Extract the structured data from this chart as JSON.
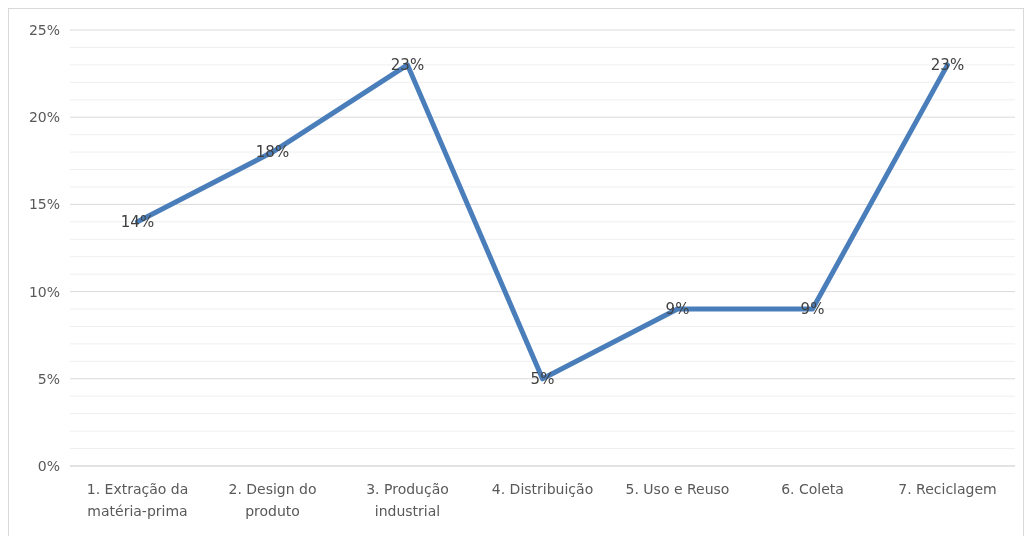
{
  "chart_data": {
    "type": "line",
    "categories": [
      "1. Extração da matéria-prima",
      "2. Design do produto",
      "3. Produção industrial",
      "4. Distribuição",
      "5. Uso e Reuso",
      "6. Coleta",
      "7. Reciclagem"
    ],
    "series": [
      {
        "color": "#4a7ebb",
        "values": [
          14,
          18,
          23,
          5,
          9,
          9,
          23
        ],
        "value_labels": [
          "14%",
          "18%",
          "23%",
          "5%",
          "9%",
          "9%",
          "23%"
        ]
      }
    ],
    "ylim": [
      0,
      25
    ],
    "yticks": [
      {
        "value": 0,
        "label": "0%"
      },
      {
        "value": 1,
        "label": null
      },
      {
        "value": 2,
        "label": null
      },
      {
        "value": 3,
        "label": null
      },
      {
        "value": 4,
        "label": null
      },
      {
        "value": 5,
        "label": "5%"
      },
      {
        "value": 6,
        "label": null
      },
      {
        "value": 7,
        "label": null
      },
      {
        "value": 8,
        "label": null
      },
      {
        "value": 9,
        "label": null
      },
      {
        "value": 10,
        "label": "10%"
      },
      {
        "value": 11,
        "label": null
      },
      {
        "value": 12,
        "label": null
      },
      {
        "value": 13,
        "label": null
      },
      {
        "value": 14,
        "label": null
      },
      {
        "value": 15,
        "label": "15%"
      },
      {
        "value": 16,
        "label": null
      },
      {
        "value": 17,
        "label": null
      },
      {
        "value": 18,
        "label": null
      },
      {
        "value": 19,
        "label": null
      },
      {
        "value": 20,
        "label": "20%"
      },
      {
        "value": 21,
        "label": null
      },
      {
        "value": 22,
        "label": null
      },
      {
        "value": 23,
        "label": null
      },
      {
        "value": 24,
        "label": null
      },
      {
        "value": 25,
        "label": "25%"
      }
    ],
    "grid": "y",
    "marker": "none",
    "line_style": "solid"
  }
}
